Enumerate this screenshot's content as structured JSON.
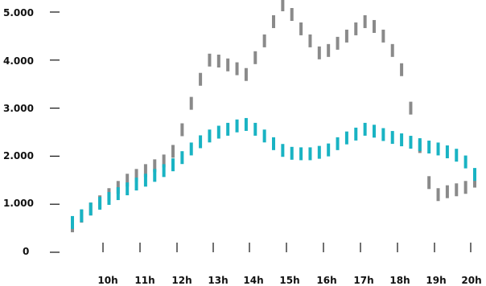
{
  "chart_data": {
    "type": "line",
    "x_labels": [
      "10h",
      "11h",
      "12h",
      "13h",
      "14h",
      "15h",
      "16h",
      "17h",
      "18h",
      "19h",
      "20h"
    ],
    "x_range": [
      9.0,
      20.0
    ],
    "ylim": [
      0,
      5000
    ],
    "y_ticks": [
      0,
      1000,
      2000,
      3000,
      4000,
      5000
    ],
    "y_tick_labels": [
      "0",
      "1.000",
      "2.000",
      "3.000",
      "4.000",
      "5.000"
    ],
    "grid": false,
    "legend": "none",
    "series": [
      {
        "color": "#8a8a8a",
        "style": "vertical-dashes",
        "x": [
          9.0,
          9.25,
          9.5,
          9.75,
          10.0,
          10.25,
          10.5,
          10.75,
          11.0,
          11.25,
          11.5,
          11.75,
          12.0,
          12.25,
          12.5,
          12.75,
          13.0,
          13.25,
          13.5,
          13.75,
          14.0,
          14.25,
          14.5,
          14.75,
          15.0,
          15.25,
          15.5,
          15.75,
          16.0,
          16.25,
          16.5,
          16.75,
          17.0,
          17.25,
          17.5,
          17.75,
          18.0,
          18.25,
          18.5,
          18.75,
          19.0,
          19.25,
          19.5,
          19.75,
          20.0
        ],
        "y": [
          550,
          750,
          900,
          1050,
          1200,
          1350,
          1500,
          1600,
          1700,
          1800,
          1900,
          2100,
          2550,
          3100,
          3600,
          4000,
          3980,
          3900,
          3820,
          3700,
          4050,
          4400,
          4800,
          5150,
          4950,
          4650,
          4400,
          4150,
          4200,
          4350,
          4500,
          4650,
          4800,
          4700,
          4500,
          4200,
          3800,
          3000,
          2200,
          1450,
          1200,
          1260,
          1300,
          1350,
          1480
        ]
      },
      {
        "color": "#19b3c3",
        "style": "vertical-dashes",
        "x": [
          9.0,
          9.25,
          9.5,
          9.75,
          10.0,
          10.25,
          10.5,
          10.75,
          11.0,
          11.25,
          11.5,
          11.75,
          12.0,
          12.25,
          12.5,
          12.75,
          13.0,
          13.25,
          13.5,
          13.75,
          14.0,
          14.25,
          14.5,
          14.75,
          15.0,
          15.25,
          15.5,
          15.75,
          16.0,
          16.25,
          16.5,
          16.75,
          17.0,
          17.25,
          17.5,
          17.75,
          18.0,
          18.25,
          18.5,
          18.75,
          19.0,
          19.25,
          19.5,
          19.75,
          20.0
        ],
        "y": [
          620,
          760,
          900,
          1020,
          1120,
          1220,
          1320,
          1420,
          1500,
          1600,
          1700,
          1820,
          1970,
          2150,
          2300,
          2420,
          2500,
          2560,
          2630,
          2660,
          2560,
          2420,
          2260,
          2120,
          2060,
          2050,
          2050,
          2080,
          2130,
          2260,
          2380,
          2460,
          2560,
          2520,
          2450,
          2390,
          2340,
          2290,
          2240,
          2190,
          2150,
          2090,
          2020,
          1880,
          1620
        ]
      }
    ]
  }
}
